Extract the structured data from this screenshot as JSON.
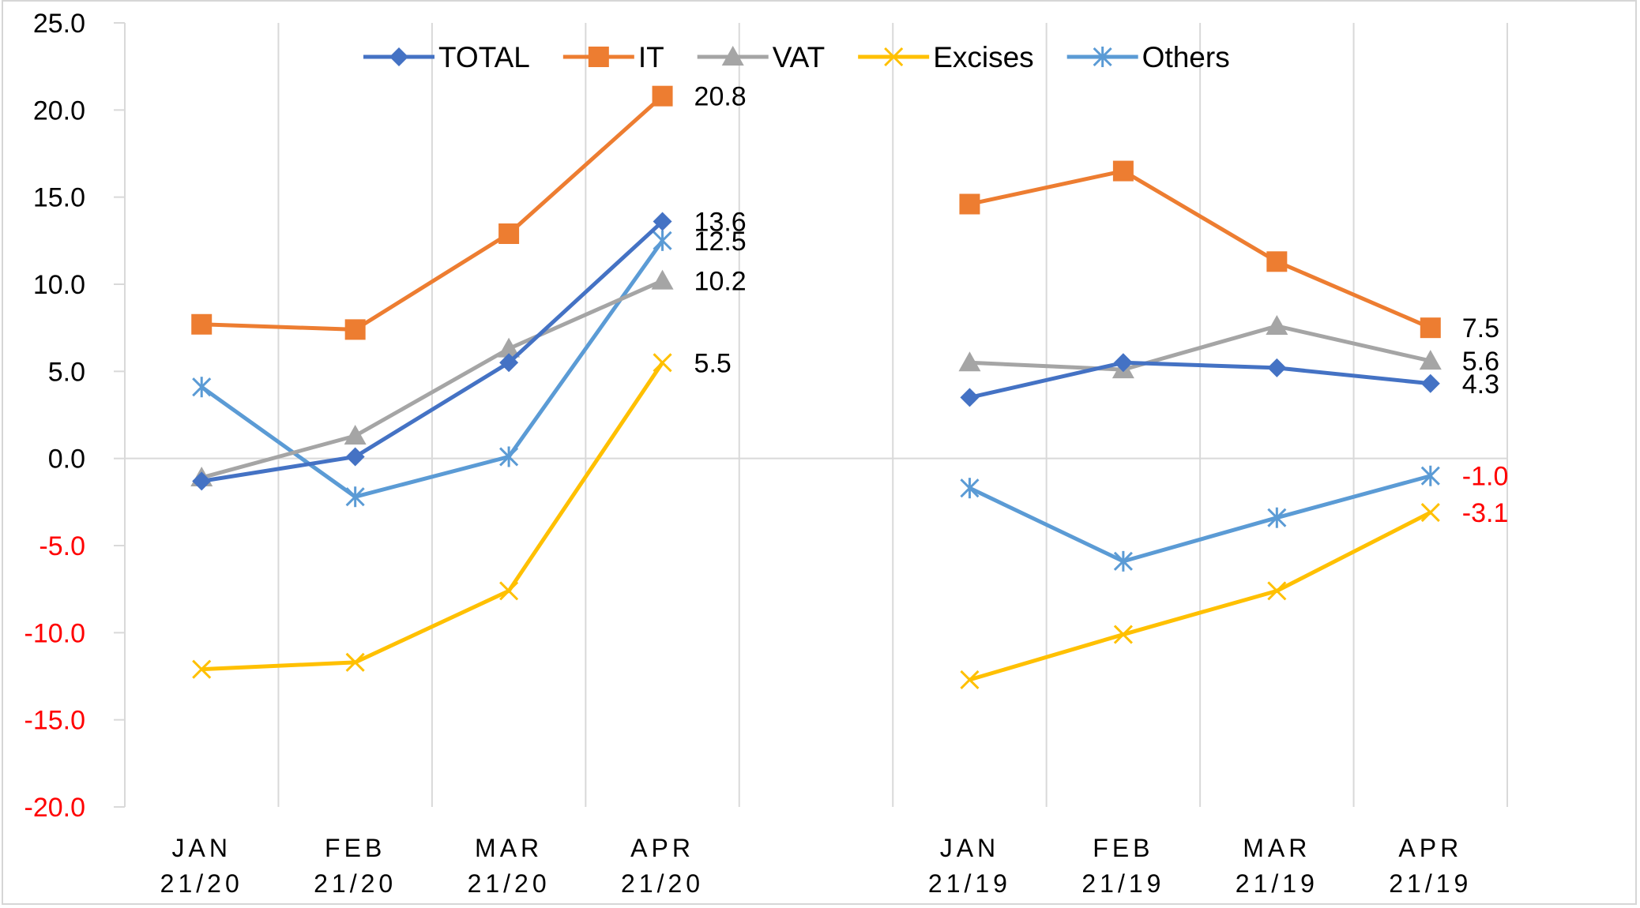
{
  "chart_data": {
    "type": "line",
    "title": "",
    "xlabel": "",
    "ylabel": "",
    "ylim": [
      -20,
      25
    ],
    "yticks": [
      "25.0",
      "20.0",
      "15.0",
      "10.0",
      "5.0",
      "0.0",
      "-5.0",
      "-10.0",
      "-15.0",
      "-20.0"
    ],
    "grid": "vertical",
    "legend_position": "top",
    "negative_label_color": "#ff0000",
    "groups": [
      {
        "categories": [
          [
            "JAN",
            "21/20"
          ],
          [
            "FEB",
            "21/20"
          ],
          [
            "MAR",
            "21/20"
          ],
          [
            "APR",
            "21/20"
          ]
        ],
        "series": [
          {
            "name": "TOTAL",
            "values": [
              -1.3,
              0.1,
              5.5,
              13.6
            ],
            "end_label": "13.6"
          },
          {
            "name": "IT",
            "values": [
              7.7,
              7.4,
              12.9,
              20.8
            ],
            "end_label": "20.8"
          },
          {
            "name": "VAT",
            "values": [
              -1.1,
              1.3,
              6.3,
              10.2
            ],
            "end_label": "10.2"
          },
          {
            "name": "Excises",
            "values": [
              -12.1,
              -11.7,
              -7.6,
              5.5
            ],
            "end_label": "5.5"
          },
          {
            "name": "Others",
            "values": [
              4.1,
              -2.2,
              0.1,
              12.5
            ],
            "end_label": "12.5"
          }
        ]
      },
      {
        "categories": [
          [
            "JAN",
            "21/19"
          ],
          [
            "FEB",
            "21/19"
          ],
          [
            "MAR",
            "21/19"
          ],
          [
            "APR",
            "21/19"
          ]
        ],
        "series": [
          {
            "name": "TOTAL",
            "values": [
              3.5,
              5.5,
              5.2,
              4.3
            ],
            "end_label": "4.3"
          },
          {
            "name": "IT",
            "values": [
              14.6,
              16.5,
              11.3,
              7.5
            ],
            "end_label": "7.5"
          },
          {
            "name": "VAT",
            "values": [
              5.5,
              5.1,
              7.6,
              5.6
            ],
            "end_label": "5.6"
          },
          {
            "name": "Excises",
            "values": [
              -12.7,
              -10.1,
              -7.6,
              -3.1
            ],
            "end_label": "-3.1"
          },
          {
            "name": "Others",
            "values": [
              -1.7,
              -5.9,
              -3.4,
              -1.0
            ],
            "end_label": "-1.0"
          }
        ]
      }
    ],
    "series_styles": [
      {
        "name": "TOTAL",
        "color": "#4472c4",
        "marker": "diamond"
      },
      {
        "name": "IT",
        "color": "#ed7d31",
        "marker": "square"
      },
      {
        "name": "VAT",
        "color": "#a5a5a5",
        "marker": "triangle"
      },
      {
        "name": "Excises",
        "color": "#ffc000",
        "marker": "x"
      },
      {
        "name": "Others",
        "color": "#5b9bd5",
        "marker": "asterisk"
      }
    ]
  }
}
